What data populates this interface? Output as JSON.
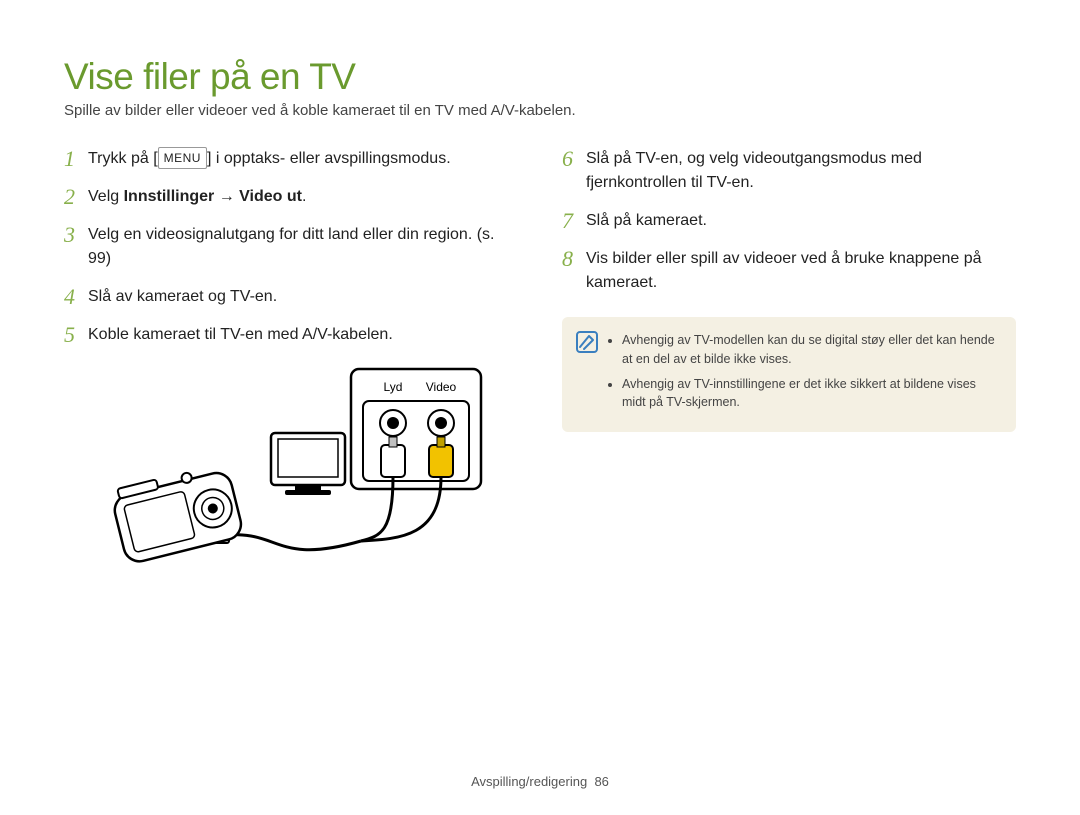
{
  "title": "Vise filer på en TV",
  "subtitle": "Spille av bilder eller videoer ved å koble kameraet til en TV med A/V-kabelen.",
  "left_steps": [
    {
      "n": "1",
      "pre": "Trykk på [",
      "menu": "MENU",
      "post": "] i opptaks- eller avspillingsmodus."
    },
    {
      "n": "2",
      "html": "Velg <b>Innstillinger</b> <span class='arrow'>→</span> <b>Video ut</b>."
    },
    {
      "n": "3",
      "text": "Velg en videosignalutgang for ditt land eller din region. (s. 99)"
    },
    {
      "n": "4",
      "text": "Slå av kameraet og TV-en."
    },
    {
      "n": "5",
      "text": "Koble kameraet til TV-en med A/V-kabelen."
    }
  ],
  "right_steps": [
    {
      "n": "6",
      "text": "Slå på TV-en, og velg videoutgangsmodus med fjernkontrollen til TV-en."
    },
    {
      "n": "7",
      "text": "Slå på kameraet."
    },
    {
      "n": "8",
      "text": "Vis bilder eller spill av videoer ved å bruke knappene på kameraet."
    }
  ],
  "illus_labels": {
    "audio": "Lyd",
    "video": "Video"
  },
  "colors": {
    "title": "#6a9a2e",
    "step_num": "#88b04b",
    "note_bg": "#f4f0e3",
    "note_icon_border": "#3a7fbf",
    "video_plug": "#f2c200",
    "audio_plug": "#ffffff"
  },
  "notes": [
    "Avhengig av TV-modellen kan du se digital støy eller det kan hende at en del av et bilde ikke vises.",
    "Avhengig av TV-innstillingene er det ikke sikkert at bildene vises midt på TV-skjermen."
  ],
  "footer": {
    "section": "Avspilling/redigering",
    "page": "86"
  }
}
